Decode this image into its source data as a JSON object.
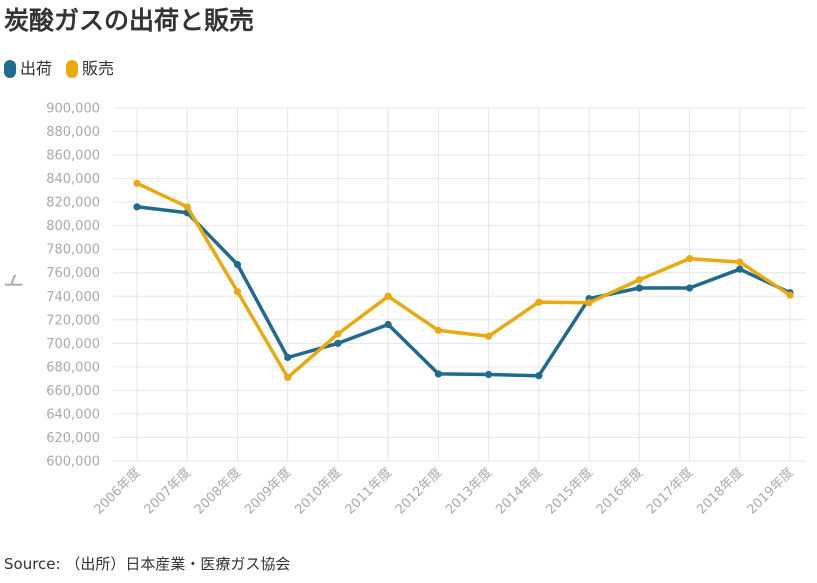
{
  "title": "炭酸ガスの出荷と販売",
  "source": "Source: （出所）日本産業・医療ガス協会",
  "ylabel_glyph": "ト",
  "colors": {
    "shipment": "#1f6a8f",
    "sales": "#e9a90f",
    "grid": "#e6e6e6",
    "tick": "#aaaaaa"
  },
  "chart_data": {
    "type": "line",
    "title": "炭酸ガスの出荷と販売",
    "ylabel": "ト",
    "legend": "top-left",
    "grid": true,
    "ylim": [
      600000,
      900000
    ],
    "yticks": [
      600000,
      620000,
      640000,
      660000,
      680000,
      700000,
      720000,
      740000,
      760000,
      780000,
      800000,
      820000,
      840000,
      860000,
      880000,
      900000
    ],
    "ytick_labels": [
      "600,000",
      "620,000",
      "640,000",
      "660,000",
      "680,000",
      "700,000",
      "720,000",
      "740,000",
      "760,000",
      "780,000",
      "800,000",
      "820,000",
      "840,000",
      "860,000",
      "880,000",
      "900,000"
    ],
    "categories": [
      "2006年度",
      "2007年度",
      "2008年度",
      "2009年度",
      "2010年度",
      "2011年度",
      "2012年度",
      "2013年度",
      "2014年度",
      "2015年度",
      "2016年度",
      "2017年度",
      "2018年度",
      "2019年度"
    ],
    "series": [
      {
        "name": "出荷",
        "color": "#1f6a8f",
        "values": [
          816000,
          811000,
          767000,
          688000,
          700000,
          716000,
          674000,
          673500,
          672500,
          738000,
          747000,
          747000,
          763000,
          743000
        ]
      },
      {
        "name": "販売",
        "color": "#e9a90f",
        "values": [
          836000,
          816000,
          744000,
          671000,
          708000,
          740000,
          711000,
          706000,
          735000,
          734500,
          754000,
          772000,
          769000,
          741000
        ]
      }
    ]
  }
}
